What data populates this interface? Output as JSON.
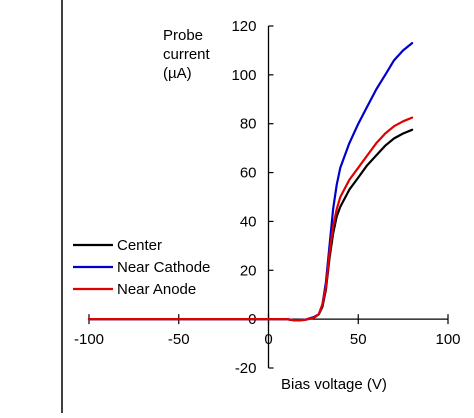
{
  "chart_data": {
    "type": "line",
    "title": "",
    "xlabel": "Bias voltage (V)",
    "ylabel": "Probe current (µA)",
    "ylabel_lines": [
      "Probe",
      "current",
      "(µA)"
    ],
    "xlim": [
      -100,
      100
    ],
    "ylim": [
      -20,
      120
    ],
    "xticks": [
      -100,
      -50,
      0,
      50,
      100
    ],
    "yticks": [
      -20,
      0,
      20,
      40,
      60,
      80,
      100,
      120
    ],
    "grid": false,
    "legend_position": "left-middle",
    "series": [
      {
        "name": "Center",
        "color": "#000000",
        "points": [
          [
            -100,
            0
          ],
          [
            10,
            0
          ],
          [
            15,
            -0.5
          ],
          [
            20,
            -0.3
          ],
          [
            25,
            0.5
          ],
          [
            28,
            2
          ],
          [
            30,
            5
          ],
          [
            32,
            12
          ],
          [
            34,
            25
          ],
          [
            36,
            35
          ],
          [
            38,
            42
          ],
          [
            40,
            46
          ],
          [
            45,
            53
          ],
          [
            50,
            58
          ],
          [
            55,
            63
          ],
          [
            60,
            67
          ],
          [
            65,
            71
          ],
          [
            70,
            74
          ],
          [
            75,
            76
          ],
          [
            80,
            77.5
          ]
        ]
      },
      {
        "name": "Near Cathode",
        "color": "#0000cc",
        "points": [
          [
            -100,
            0
          ],
          [
            10,
            0
          ],
          [
            15,
            -0.5
          ],
          [
            20,
            -0.3
          ],
          [
            25,
            0.8
          ],
          [
            28,
            2
          ],
          [
            30,
            6
          ],
          [
            32,
            15
          ],
          [
            34,
            30
          ],
          [
            36,
            45
          ],
          [
            38,
            55
          ],
          [
            40,
            62
          ],
          [
            45,
            72
          ],
          [
            50,
            80
          ],
          [
            55,
            87
          ],
          [
            60,
            94
          ],
          [
            65,
            100
          ],
          [
            70,
            106
          ],
          [
            75,
            110
          ],
          [
            80,
            113
          ]
        ]
      },
      {
        "name": "Near Anode",
        "color": "#e00000",
        "points": [
          [
            -100,
            0
          ],
          [
            10,
            0
          ],
          [
            15,
            -0.5
          ],
          [
            20,
            -0.3
          ],
          [
            25,
            0.5
          ],
          [
            28,
            2
          ],
          [
            30,
            6
          ],
          [
            32,
            13
          ],
          [
            34,
            27
          ],
          [
            36,
            38
          ],
          [
            38,
            45
          ],
          [
            40,
            50
          ],
          [
            45,
            57
          ],
          [
            50,
            62
          ],
          [
            55,
            67
          ],
          [
            60,
            72
          ],
          [
            65,
            76
          ],
          [
            70,
            79
          ],
          [
            75,
            81
          ],
          [
            80,
            82.5
          ]
        ]
      }
    ]
  }
}
